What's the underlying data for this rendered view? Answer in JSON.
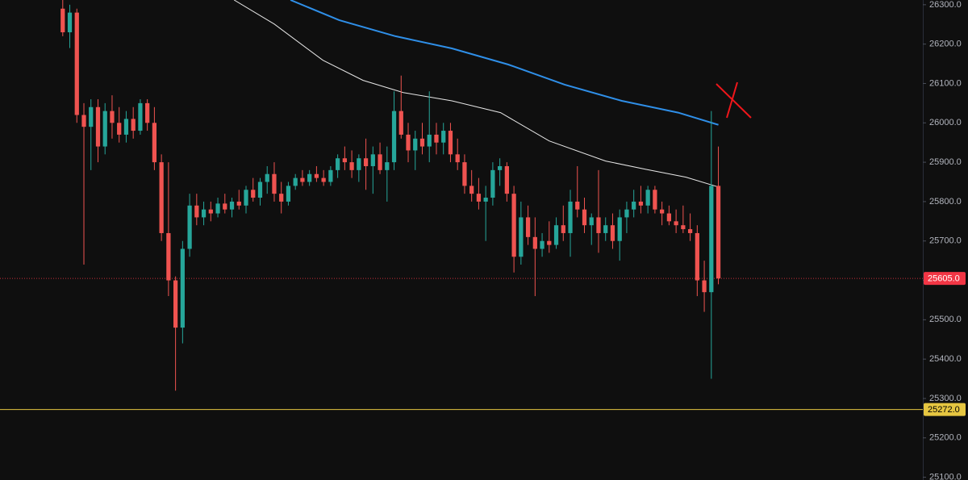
{
  "chart_data": {
    "type": "candlestick",
    "open": [
      26290,
      26230,
      26280,
      26020,
      25990,
      26040,
      25940,
      26030,
      26000,
      25970,
      26010,
      25980,
      26050,
      26000,
      25900,
      25720,
      25600,
      25480,
      25680,
      25790,
      25760,
      25780,
      25770,
      25795,
      25780,
      25800,
      25790,
      25830,
      25810,
      25850,
      25870,
      25820,
      25800,
      25840,
      25860,
      25850,
      25870,
      25860,
      25850,
      25880,
      25910,
      25900,
      25880,
      25910,
      25890,
      25920,
      25880,
      25900,
      26030,
      25970,
      25930,
      25960,
      25940,
      25970,
      25950,
      25980,
      25920,
      25900,
      25840,
      25820,
      25800,
      25810,
      25880,
      25890,
      25820,
      25660,
      25760,
      25710,
      25680,
      25700,
      25690,
      25740,
      25720,
      25800,
      25780,
      25740,
      25760,
      25720,
      25740,
      25700,
      25760,
      25780,
      25800,
      25790,
      25830,
      25780,
      25770,
      25750,
      25740,
      25730,
      25720,
      25600,
      25570,
      25840
    ],
    "high": [
      26320,
      26300,
      26290,
      26050,
      26060,
      26060,
      26050,
      26070,
      26040,
      26030,
      26040,
      26060,
      26060,
      26040,
      25920,
      25900,
      25610,
      25700,
      25820,
      25820,
      25800,
      25800,
      25810,
      25820,
      25810,
      25830,
      25840,
      25860,
      25860,
      25890,
      25900,
      25850,
      25850,
      25870,
      25880,
      25880,
      25890,
      25880,
      25890,
      25920,
      25940,
      25930,
      25920,
      25960,
      25940,
      25950,
      25940,
      26080,
      26120,
      26000,
      25980,
      26000,
      26080,
      26000,
      26000,
      26000,
      25960,
      25920,
      25880,
      25860,
      25840,
      25900,
      25910,
      25900,
      25840,
      25800,
      25790,
      25760,
      25720,
      25750,
      25760,
      25790,
      25830,
      25890,
      25810,
      25770,
      25880,
      25760,
      25770,
      25780,
      25800,
      25830,
      25840,
      25840,
      25840,
      25800,
      25790,
      25780,
      25790,
      25770,
      25740,
      25650,
      26030,
      25940
    ],
    "low": [
      26220,
      26190,
      26000,
      25640,
      25880,
      25900,
      25920,
      25960,
      25950,
      25950,
      25960,
      25970,
      25980,
      25880,
      25700,
      25560,
      25320,
      25440,
      25660,
      25740,
      25740,
      25750,
      25760,
      25770,
      25760,
      25780,
      25770,
      25800,
      25790,
      25820,
      25800,
      25770,
      25790,
      25830,
      25840,
      25840,
      25850,
      25840,
      25840,
      25860,
      25880,
      25860,
      25850,
      25830,
      25820,
      25870,
      25800,
      25880,
      25960,
      25900,
      25880,
      25920,
      25900,
      25920,
      25920,
      25900,
      25880,
      25820,
      25800,
      25780,
      25700,
      25790,
      25840,
      25800,
      25620,
      25640,
      25690,
      25560,
      25660,
      25670,
      25680,
      25700,
      25660,
      25760,
      25720,
      25690,
      25670,
      25700,
      25680,
      25650,
      25720,
      25760,
      25770,
      25770,
      25770,
      25740,
      25740,
      25720,
      25720,
      25700,
      25560,
      25520,
      25350,
      25590
    ],
    "close": [
      26230,
      26280,
      26020,
      25990,
      26040,
      25940,
      26030,
      26000,
      25970,
      26010,
      25980,
      26050,
      26000,
      25900,
      25720,
      25600,
      25480,
      25680,
      25790,
      25760,
      25780,
      25770,
      25795,
      25780,
      25800,
      25790,
      25830,
      25810,
      25850,
      25870,
      25820,
      25800,
      25840,
      25860,
      25850,
      25870,
      25860,
      25850,
      25880,
      25910,
      25900,
      25880,
      25910,
      25890,
      25920,
      25880,
      25900,
      26030,
      25970,
      25930,
      25960,
      25940,
      25970,
      25950,
      25980,
      25920,
      25900,
      25840,
      25820,
      25800,
      25810,
      25880,
      25890,
      25820,
      25660,
      25760,
      25710,
      25680,
      25700,
      25690,
      25740,
      25720,
      25800,
      25780,
      25740,
      25760,
      25720,
      25740,
      25700,
      25760,
      25780,
      25800,
      25790,
      25830,
      25780,
      25770,
      25750,
      25740,
      25730,
      25720,
      25600,
      25570,
      25840,
      25605
    ],
    "up_color": "#26a69a",
    "down_color": "#ef5350",
    "lines": [
      {
        "color": "#2f8fe8",
        "x": [
          32.3,
          39.2,
          47.2,
          55.2,
          63.2,
          71.2,
          79.3,
          87.3,
          93.0
        ],
        "values": [
          26312,
          26261,
          26220,
          26189,
          26148,
          26097,
          26056,
          26026,
          25995
        ]
      },
      {
        "color": "#e8e8e8",
        "x": [
          24.3,
          30.0,
          36.9,
          42.6,
          48.3,
          55.2,
          62.1,
          69.0,
          77.0,
          82.7,
          88.4,
          93.0
        ],
        "values": [
          26312,
          26251,
          26159,
          26108,
          26077,
          26056,
          26026,
          25954,
          25903,
          25882,
          25862,
          25837
        ]
      }
    ],
    "hlines": [
      {
        "value": 25605,
        "label": "25605.0",
        "color": "#f23645",
        "dotted": true
      },
      {
        "value": 25272,
        "label": "25272.0",
        "color": "#e6c641",
        "dotted": false
      }
    ],
    "xlim": [
      -8.9,
      122
    ],
    "ylim": [
      25093,
      26312
    ],
    "yticks": [
      {
        "value": 25100,
        "label": "25100.0"
      },
      {
        "value": 25200,
        "label": "25200.0"
      },
      {
        "value": 25300,
        "label": "25300.0"
      },
      {
        "value": 25400,
        "label": "25400.0"
      },
      {
        "value": 25500,
        "label": "25500.0"
      },
      {
        "value": 25600,
        "label": "25600.0"
      },
      {
        "value": 25700,
        "label": "25700.0"
      },
      {
        "value": 25800,
        "label": "25800.0"
      },
      {
        "value": 25900,
        "label": "25900.0"
      },
      {
        "value": 26000,
        "label": "26000.0"
      },
      {
        "value": 26100,
        "label": "26100.0"
      },
      {
        "value": 26200,
        "label": "26200.0"
      },
      {
        "value": 26300,
        "label": "26300.0"
      }
    ]
  }
}
